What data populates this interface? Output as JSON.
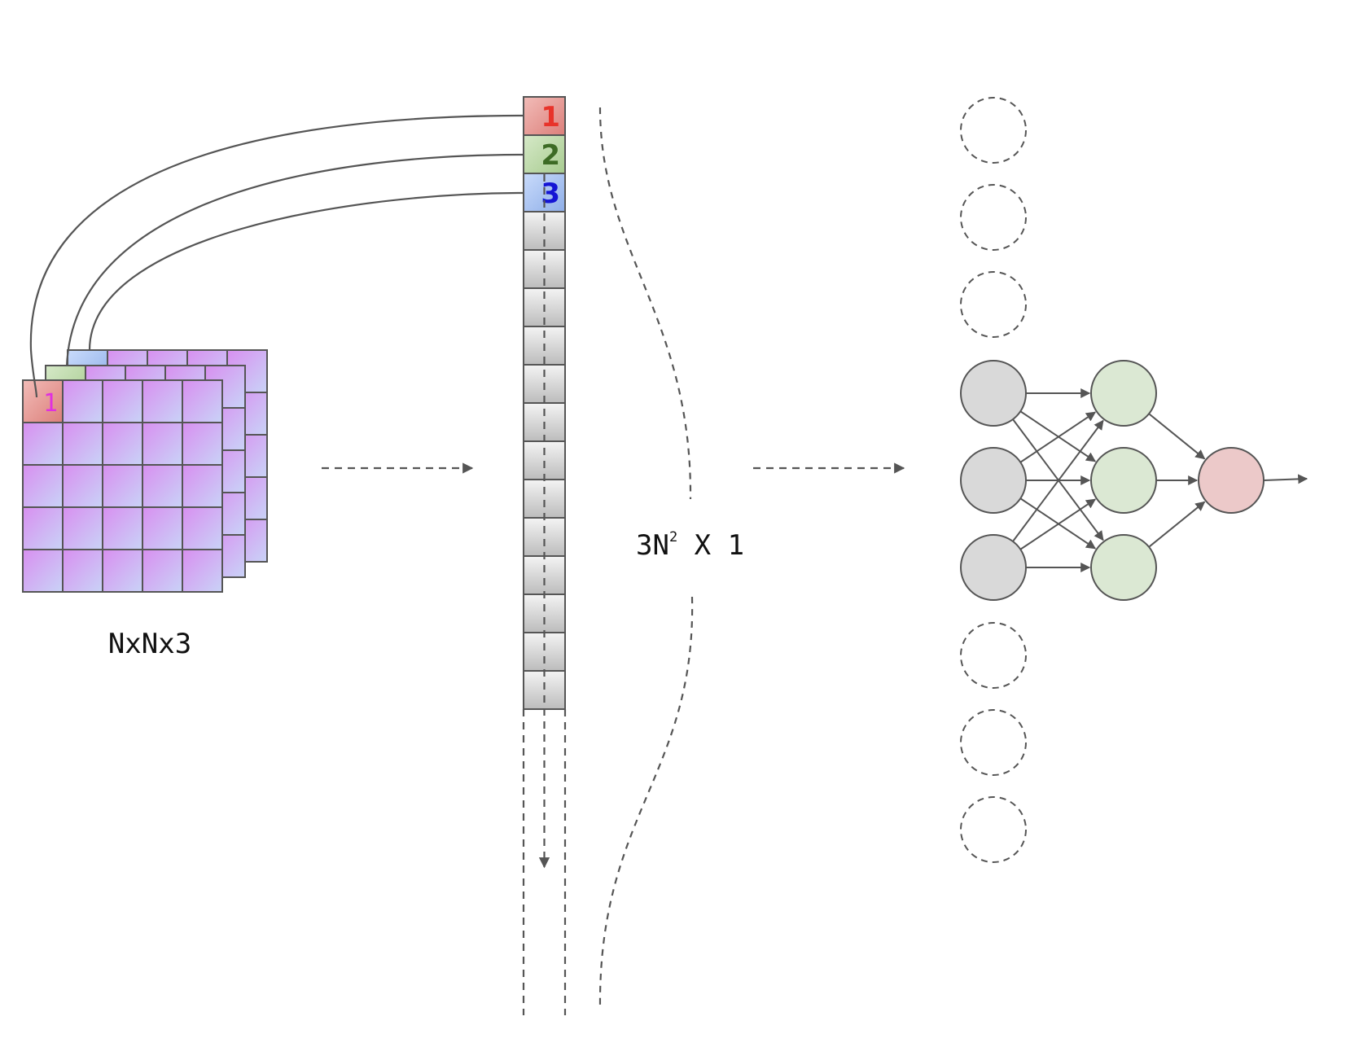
{
  "image_grid": {
    "label": "NxNx3",
    "cell_label": "1",
    "rows": 5,
    "cols": 5,
    "layers": 3
  },
  "vector": {
    "cells": [
      {
        "label": "1",
        "color": "#e8332a"
      },
      {
        "label": "2",
        "color": "#3d6b25"
      },
      {
        "label": "3",
        "color": "#1414d4"
      }
    ],
    "gray_cell_count": 13,
    "dimension_label": {
      "base": "3N",
      "exponent": "2",
      "suffix": " X 1"
    }
  },
  "network": {
    "input_visible": 3,
    "input_hidden_above": 3,
    "input_hidden_below": 3,
    "hidden_nodes": 3,
    "output_nodes": 1
  },
  "colors": {
    "stroke": "#555555",
    "red_cell": "#e8a7a4",
    "green_cell": "#bdd8aa",
    "blue_cell": "#a8c2ef",
    "purple_cell": "#d59bf0",
    "gray_node": "#d9d9d9",
    "green_node": "#dbe8d3",
    "red_node": "#ecc9c9",
    "magenta_text": "#e030e0"
  }
}
